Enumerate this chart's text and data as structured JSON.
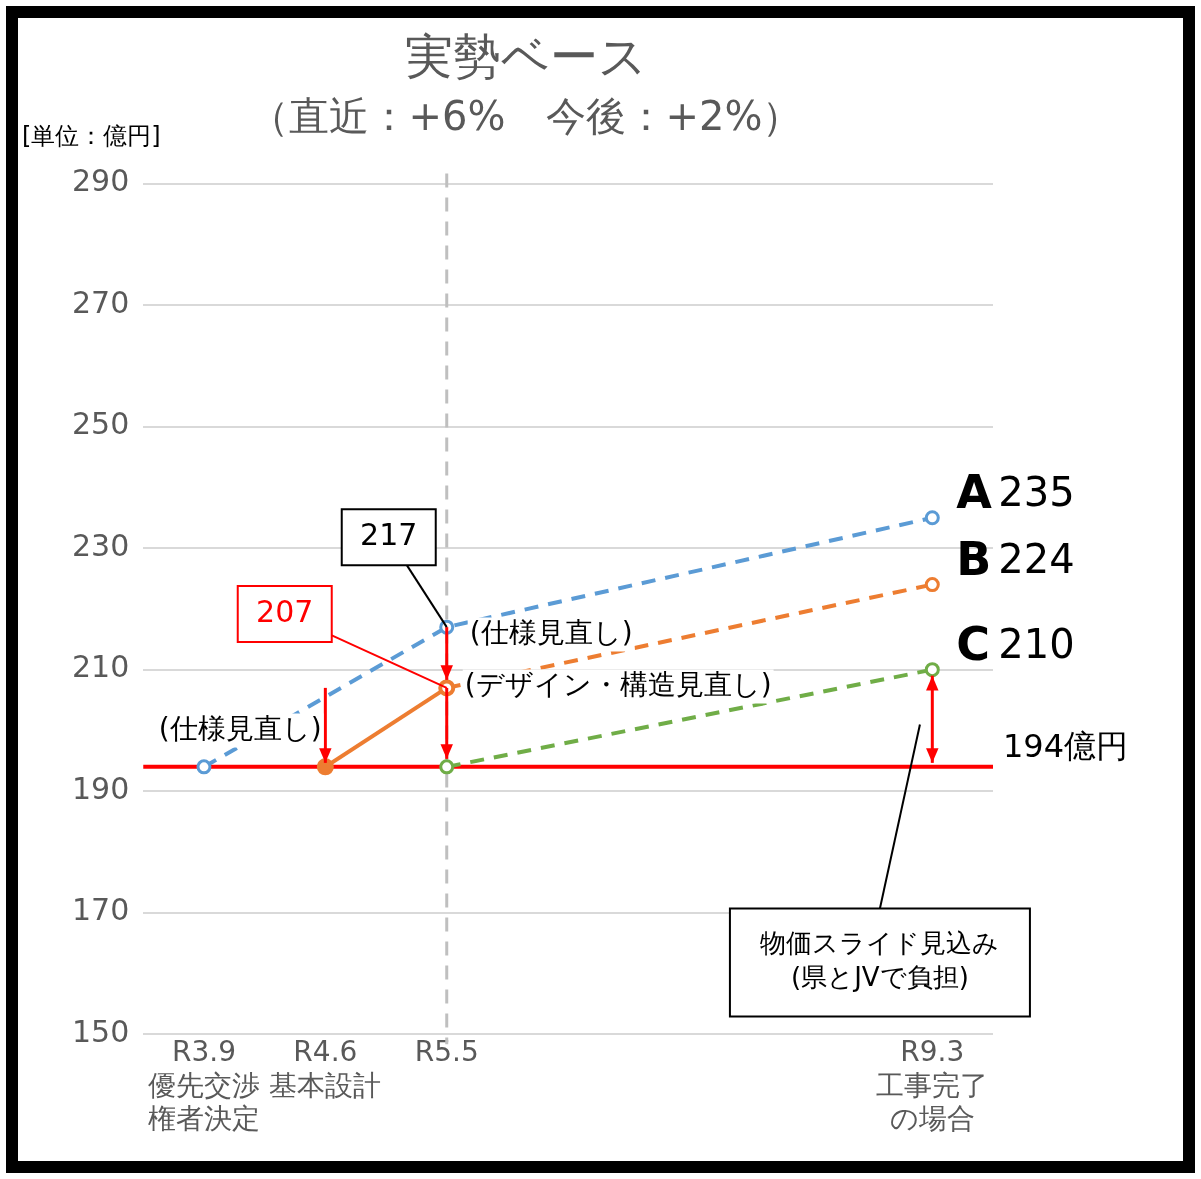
{
  "chart_data": {
    "type": "line",
    "title": "実勢ベース",
    "subtitle": "（直近：+6%　今後：+2%）",
    "ylabel": "[単位：億円]",
    "categories": [
      "R3.9\n優先交渉権者決定",
      "R4.6\n基本設計",
      "R5.5",
      null,
      null,
      null,
      "R9.3\n工事完了の場合"
    ],
    "ylim": [
      150,
      290
    ],
    "yticks": [
      150,
      170,
      190,
      210,
      230,
      250,
      270,
      290
    ],
    "grid": "y",
    "legend": false,
    "marker": "circle",
    "series": [
      {
        "name": "A",
        "color": "#5b9bd5",
        "line_style": "dashed",
        "values": [
          194,
          null,
          217,
          null,
          null,
          null,
          235
        ],
        "value_labels": [
          null,
          null,
          "217",
          null,
          null,
          null,
          "235"
        ]
      },
      {
        "name": "B",
        "color": "#ed7d31",
        "line_style": "dashed",
        "values": [
          null,
          null,
          207,
          null,
          null,
          null,
          224
        ],
        "value_labels": [
          null,
          null,
          null,
          null,
          null,
          null,
          "224"
        ]
      },
      {
        "color": "#ed7d31",
        "line_style": "solid",
        "values": [
          null,
          194,
          207,
          null,
          null,
          null,
          null
        ],
        "value_labels": [
          null,
          null,
          "207",
          null,
          null,
          null,
          null
        ]
      },
      {
        "name": "C",
        "color": "#70ad47",
        "line_style": "dashed",
        "values": [
          null,
          null,
          194,
          null,
          null,
          null,
          210
        ],
        "value_labels": [
          null,
          null,
          null,
          null,
          null,
          null,
          "210"
        ]
      }
    ],
    "ref_lines": [
      {
        "axis": "y",
        "value": 194,
        "label": "194億円",
        "color": "#ff0000",
        "line_style": "solid"
      },
      {
        "axis": "x",
        "value": "R5.5",
        "label": null,
        "color": "#bfbfbf",
        "line_style": "dashed"
      }
    ],
    "annotations": [
      "(仕様見直し)",
      "(仕様見直し)",
      {
        "text": "(デザイン・構造見直し)",
        "x": "R5.5",
        "y": 200
      },
      "物価スライド見込み\n(県とJVで負担)"
    ]
  }
}
